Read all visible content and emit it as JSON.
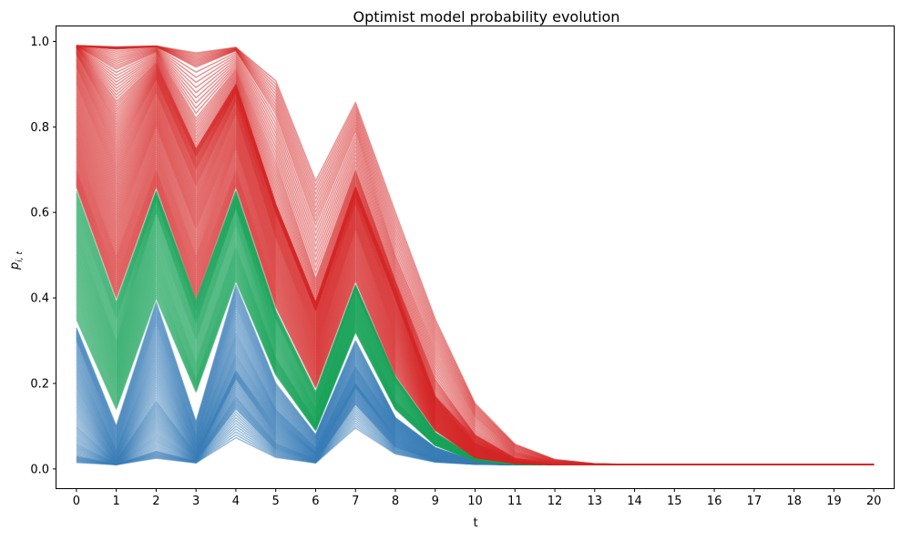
{
  "chart_data": {
    "type": "line",
    "title": "Optimist model probability evolution",
    "xlabel": "t",
    "ylabel": "p_{i,t}",
    "ylabel_main": "p",
    "ylabel_sub": "i, t",
    "xlim": [
      -0.5,
      20.5
    ],
    "ylim": [
      -0.045,
      1.035
    ],
    "x_ticks": [
      0,
      1,
      2,
      3,
      4,
      5,
      6,
      7,
      8,
      9,
      10,
      11,
      12,
      13,
      14,
      15,
      16,
      17,
      18,
      19,
      20
    ],
    "y_ticks": [
      0.0,
      0.2,
      0.4,
      0.6,
      0.8,
      1.0
    ],
    "y_tick_labels": [
      "0.0",
      "0.2",
      "0.4",
      "0.6",
      "0.8",
      "1.0"
    ],
    "grid": false,
    "legend": "none",
    "colors": {
      "high": "#d62728",
      "mid": "#1aa35a",
      "low": "#3a7db8"
    },
    "groups": [
      {
        "color_key": "low",
        "values": [
          [
            0.015,
            0.01,
            0.025,
            0.014,
            0.073,
            0.027,
            0.014,
            0.096,
            0.035,
            0.016,
            0.011,
            0.01,
            0.01,
            0.01,
            0.01,
            0.01,
            0.01,
            0.01,
            0.01,
            0.01,
            0.01
          ],
          [
            0.03,
            0.011,
            0.042,
            0.018,
            0.14,
            0.045,
            0.018,
            0.15,
            0.05,
            0.02,
            0.012,
            0.01,
            0.01,
            0.01,
            0.01,
            0.01,
            0.01,
            0.01,
            0.01,
            0.01,
            0.01
          ],
          [
            0.06,
            0.012,
            0.08,
            0.022,
            0.17,
            0.06,
            0.022,
            0.17,
            0.06,
            0.022,
            0.012,
            0.01,
            0.01,
            0.01,
            0.01,
            0.01,
            0.01,
            0.01,
            0.01,
            0.01,
            0.01
          ],
          [
            0.1,
            0.015,
            0.12,
            0.028,
            0.21,
            0.08,
            0.028,
            0.19,
            0.07,
            0.025,
            0.013,
            0.01,
            0.01,
            0.01,
            0.01,
            0.01,
            0.01,
            0.01,
            0.01,
            0.01,
            0.01
          ],
          [
            0.15,
            0.02,
            0.16,
            0.035,
            0.23,
            0.1,
            0.035,
            0.2,
            0.08,
            0.03,
            0.014,
            0.01,
            0.01,
            0.01,
            0.01,
            0.01,
            0.01,
            0.01,
            0.01,
            0.01,
            0.01
          ],
          [
            0.2,
            0.03,
            0.22,
            0.045,
            0.27,
            0.12,
            0.04,
            0.22,
            0.09,
            0.035,
            0.015,
            0.011,
            0.01,
            0.01,
            0.01,
            0.01,
            0.01,
            0.01,
            0.01,
            0.01,
            0.01
          ],
          [
            0.25,
            0.045,
            0.28,
            0.06,
            0.32,
            0.14,
            0.05,
            0.24,
            0.1,
            0.04,
            0.016,
            0.011,
            0.01,
            0.01,
            0.01,
            0.01,
            0.01,
            0.01,
            0.01,
            0.01,
            0.01
          ],
          [
            0.3,
            0.07,
            0.34,
            0.08,
            0.38,
            0.17,
            0.065,
            0.27,
            0.11,
            0.045,
            0.017,
            0.011,
            0.01,
            0.01,
            0.01,
            0.01,
            0.01,
            0.01,
            0.01,
            0.01,
            0.01
          ],
          [
            0.33,
            0.1,
            0.39,
            0.11,
            0.43,
            0.2,
            0.08,
            0.3,
            0.12,
            0.05,
            0.018,
            0.011,
            0.01,
            0.01,
            0.01,
            0.01,
            0.01,
            0.01,
            0.01,
            0.01,
            0.01
          ]
        ]
      },
      {
        "color_key": "mid",
        "values": [
          [
            0.35,
            0.14,
            0.4,
            0.18,
            0.44,
            0.22,
            0.09,
            0.32,
            0.14,
            0.055,
            0.019,
            0.011,
            0.01,
            0.01,
            0.01,
            0.01,
            0.01,
            0.01,
            0.01,
            0.01,
            0.01
          ],
          [
            0.4,
            0.18,
            0.45,
            0.21,
            0.48,
            0.24,
            0.1,
            0.34,
            0.15,
            0.06,
            0.02,
            0.011,
            0.01,
            0.01,
            0.01,
            0.01,
            0.01,
            0.01,
            0.01,
            0.01,
            0.01
          ],
          [
            0.45,
            0.22,
            0.5,
            0.25,
            0.52,
            0.26,
            0.11,
            0.36,
            0.16,
            0.065,
            0.021,
            0.012,
            0.01,
            0.01,
            0.01,
            0.01,
            0.01,
            0.01,
            0.01,
            0.01,
            0.01
          ],
          [
            0.5,
            0.26,
            0.55,
            0.3,
            0.57,
            0.29,
            0.125,
            0.38,
            0.175,
            0.07,
            0.022,
            0.012,
            0.01,
            0.01,
            0.01,
            0.01,
            0.01,
            0.01,
            0.01,
            0.01,
            0.01
          ],
          [
            0.55,
            0.3,
            0.6,
            0.34,
            0.61,
            0.32,
            0.14,
            0.4,
            0.19,
            0.075,
            0.023,
            0.012,
            0.01,
            0.01,
            0.01,
            0.01,
            0.01,
            0.01,
            0.01,
            0.01,
            0.01
          ],
          [
            0.6,
            0.35,
            0.63,
            0.37,
            0.63,
            0.35,
            0.16,
            0.42,
            0.205,
            0.08,
            0.024,
            0.012,
            0.01,
            0.01,
            0.01,
            0.01,
            0.01,
            0.01,
            0.01,
            0.01,
            0.01
          ],
          [
            0.65,
            0.39,
            0.65,
            0.395,
            0.65,
            0.37,
            0.18,
            0.43,
            0.215,
            0.085,
            0.025,
            0.012,
            0.01,
            0.01,
            0.01,
            0.01,
            0.01,
            0.01,
            0.01,
            0.01,
            0.01
          ]
        ]
      },
      {
        "color_key": "high",
        "values": [
          [
            0.66,
            0.4,
            0.66,
            0.4,
            0.66,
            0.38,
            0.19,
            0.44,
            0.22,
            0.09,
            0.026,
            0.013,
            0.01,
            0.01,
            0.01,
            0.01,
            0.01,
            0.01,
            0.01,
            0.01,
            0.01
          ],
          [
            0.7,
            0.45,
            0.7,
            0.45,
            0.7,
            0.42,
            0.22,
            0.48,
            0.25,
            0.1,
            0.03,
            0.014,
            0.01,
            0.01,
            0.01,
            0.01,
            0.01,
            0.01,
            0.01,
            0.01,
            0.01
          ],
          [
            0.75,
            0.5,
            0.75,
            0.5,
            0.75,
            0.46,
            0.25,
            0.52,
            0.28,
            0.11,
            0.035,
            0.015,
            0.011,
            0.01,
            0.01,
            0.01,
            0.01,
            0.01,
            0.01,
            0.01,
            0.01
          ],
          [
            0.8,
            0.56,
            0.8,
            0.56,
            0.79,
            0.5,
            0.28,
            0.56,
            0.31,
            0.12,
            0.04,
            0.016,
            0.011,
            0.01,
            0.01,
            0.01,
            0.01,
            0.01,
            0.01,
            0.01,
            0.01
          ],
          [
            0.85,
            0.62,
            0.84,
            0.61,
            0.83,
            0.54,
            0.31,
            0.59,
            0.34,
            0.13,
            0.045,
            0.017,
            0.011,
            0.01,
            0.01,
            0.01,
            0.01,
            0.01,
            0.01,
            0.01,
            0.01
          ],
          [
            0.9,
            0.68,
            0.88,
            0.66,
            0.86,
            0.57,
            0.34,
            0.62,
            0.37,
            0.14,
            0.05,
            0.018,
            0.011,
            0.01,
            0.01,
            0.01,
            0.01,
            0.01,
            0.01,
            0.01,
            0.01
          ],
          [
            0.94,
            0.74,
            0.91,
            0.7,
            0.88,
            0.6,
            0.37,
            0.64,
            0.4,
            0.15,
            0.055,
            0.019,
            0.011,
            0.01,
            0.01,
            0.01,
            0.01,
            0.01,
            0.01,
            0.01,
            0.01
          ],
          [
            0.97,
            0.8,
            0.93,
            0.73,
            0.89,
            0.61,
            0.38,
            0.65,
            0.41,
            0.16,
            0.06,
            0.02,
            0.011,
            0.01,
            0.01,
            0.01,
            0.01,
            0.01,
            0.01,
            0.01,
            0.01
          ],
          [
            0.985,
            0.86,
            0.95,
            0.75,
            0.9,
            0.62,
            0.39,
            0.66,
            0.42,
            0.17,
            0.07,
            0.021,
            0.011,
            0.01,
            0.01,
            0.01,
            0.01,
            0.01,
            0.01,
            0.01,
            0.01
          ],
          [
            0.989,
            0.935,
            0.975,
            0.82,
            0.935,
            0.72,
            0.445,
            0.7,
            0.44,
            0.21,
            0.08,
            0.025,
            0.012,
            0.01,
            0.01,
            0.01,
            0.01,
            0.01,
            0.01,
            0.01,
            0.01
          ],
          [
            0.99,
            0.982,
            0.988,
            0.94,
            0.978,
            0.83,
            0.57,
            0.79,
            0.5,
            0.28,
            0.12,
            0.04,
            0.015,
            0.011,
            0.01,
            0.01,
            0.01,
            0.01,
            0.01,
            0.01,
            0.01
          ],
          [
            0.99,
            0.987,
            0.989,
            0.973,
            0.986,
            0.908,
            0.673,
            0.857,
            0.6,
            0.35,
            0.153,
            0.058,
            0.022,
            0.012,
            0.01,
            0.01,
            0.01,
            0.01,
            0.01,
            0.01,
            0.01
          ]
        ]
      }
    ]
  }
}
